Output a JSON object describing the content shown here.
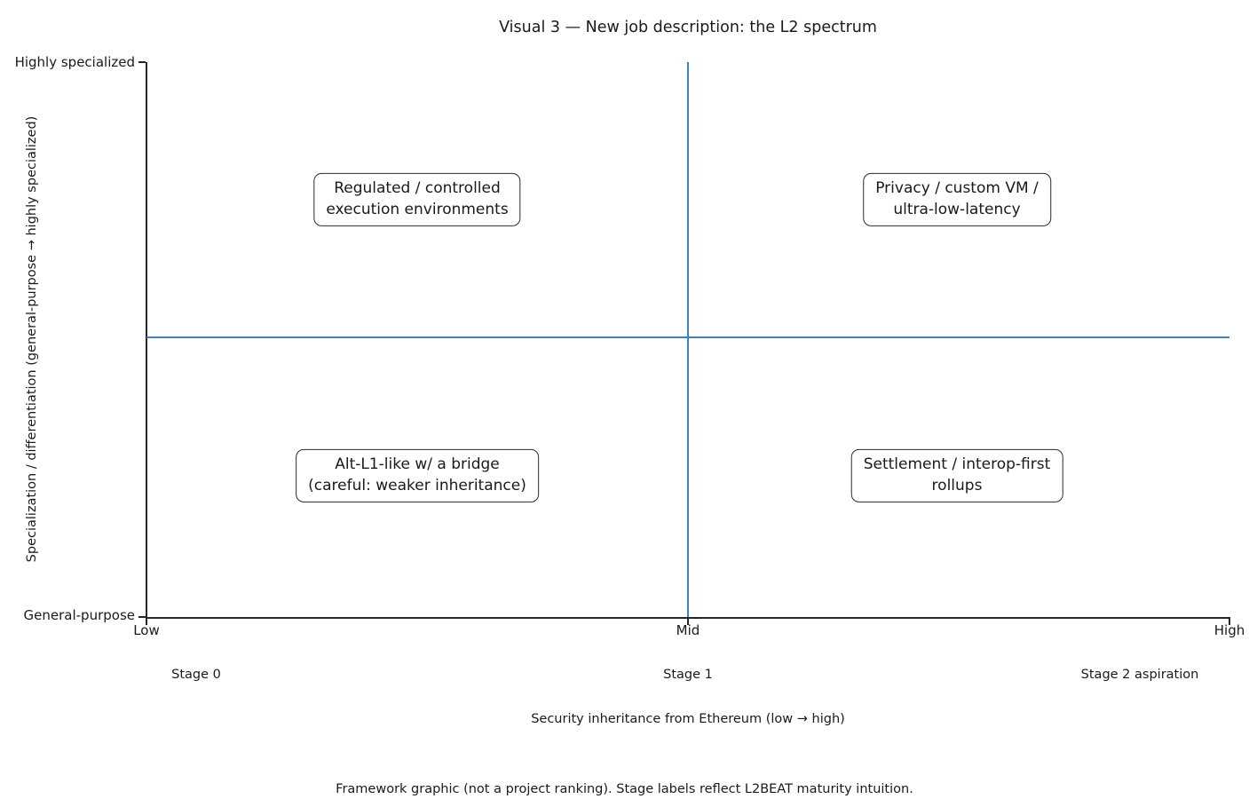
{
  "title": "Visual 3 — New job description: the L2 spectrum",
  "y_axis": {
    "label": "Specialization / differentiation (general-purpose → highly specialized)",
    "tick_top": "Highly specialized",
    "tick_bottom": "General-purpose"
  },
  "x_axis": {
    "label": "Security inheritance from Ethereum (low → high)",
    "ticks": [
      "Low",
      "Mid",
      "High"
    ]
  },
  "stage_labels": [
    "Stage 0",
    "Stage 1",
    "Stage 2 aspiration"
  ],
  "quadrants": [
    {
      "position": "top-left",
      "line1": "Regulated / controlled",
      "line2": "execution environments"
    },
    {
      "position": "top-right",
      "line1": "Privacy / custom VM /",
      "line2": "ultra-low-latency"
    },
    {
      "position": "bottom-left",
      "line1": "Alt-L1-like w/ a bridge",
      "line2": "(careful: weaker inheritance)"
    },
    {
      "position": "bottom-right",
      "line1": "Settlement / interop-first",
      "line2": "rollups"
    }
  ],
  "footnote": "Framework graphic (not a project ranking). Stage labels reflect L2BEAT maturity intuition.",
  "colors": {
    "crosshair": "#3b82c4",
    "axis": "#262626",
    "text": "#1a1a1a",
    "box_border": "#2b2b2b",
    "background": "#ffffff"
  },
  "chart_data": {
    "type": "scatter",
    "subtype": "quadrant-framework",
    "title": "Visual 3 — New job description: the L2 spectrum",
    "xlabel": "Security inheritance from Ethereum (low → high)",
    "ylabel": "Specialization / differentiation (general-purpose → highly specialized)",
    "xlim": [
      0,
      1
    ],
    "ylim": [
      0,
      1
    ],
    "grid": false,
    "legend": false,
    "x_ticks": [
      {
        "pos": 0.0,
        "label": "Low"
      },
      {
        "pos": 0.5,
        "label": "Mid"
      },
      {
        "pos": 1.0,
        "label": "High"
      }
    ],
    "y_ticks": [
      {
        "pos": 0.0,
        "label": "General-purpose"
      },
      {
        "pos": 1.0,
        "label": "Highly specialized"
      }
    ],
    "reference_lines": [
      {
        "orientation": "vertical",
        "x": 0.5,
        "color": "#3b82c4"
      },
      {
        "orientation": "horizontal",
        "y": 0.5,
        "color": "#3b82c4"
      }
    ],
    "annotations": [
      {
        "x": 0.25,
        "y": 0.75,
        "text": "Regulated / controlled execution environments",
        "boxed": true
      },
      {
        "x": 0.75,
        "y": 0.75,
        "text": "Privacy / custom VM / ultra-low-latency",
        "boxed": true
      },
      {
        "x": 0.25,
        "y": 0.25,
        "text": "Alt-L1-like w/ a bridge (careful: weaker inheritance)",
        "boxed": true
      },
      {
        "x": 0.75,
        "y": 0.25,
        "text": "Settlement / interop-first rollups",
        "boxed": true
      }
    ],
    "secondary_x_labels": [
      {
        "x": 0.05,
        "label": "Stage 0"
      },
      {
        "x": 0.5,
        "label": "Stage 1"
      },
      {
        "x": 0.92,
        "label": "Stage 2 aspiration"
      }
    ],
    "footnote": "Framework graphic (not a project ranking). Stage labels reflect L2BEAT maturity intuition."
  }
}
